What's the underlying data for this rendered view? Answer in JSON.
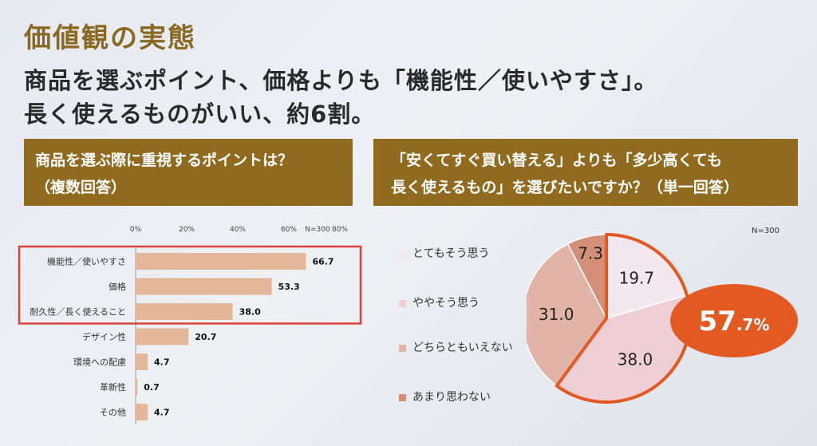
{
  "slide": {
    "title": "価値観の実態",
    "headline_line1": "商品を選ぶポイント、価格よりも「機能性／使いやすさ」。",
    "headline_line2": "長く使えるものがいい、約6割。"
  },
  "left_panel": {
    "banner_line1": "商品を選ぶ際に重視するポイントは？",
    "banner_line2": "（複数回答）"
  },
  "right_panel": {
    "banner_line1": "「安くてすぐ買い替える」よりも「多少高くても",
    "banner_line2": "長く使えるもの」を選びたいですか？（単一回答）",
    "n_label": "N=300"
  },
  "chart_data": [
    {
      "type": "bar",
      "orientation": "horizontal",
      "n_label": "N=300",
      "categories": [
        "機能性／使いやすさ",
        "価格",
        "耐久性／長く使えること",
        "デザイン性",
        "環境への配慮",
        "革新性",
        "その他"
      ],
      "values": [
        66.7,
        53.3,
        38.0,
        20.7,
        4.7,
        0.7,
        4.7
      ],
      "value_labels": [
        "66.7",
        "53.3",
        "38.0",
        "20.7",
        "4.7",
        "0.7",
        "4.7"
      ],
      "xlim": [
        0,
        80
      ],
      "ticks": [
        "0%",
        "20%",
        "40%",
        "60%",
        "80%"
      ],
      "tick_values": [
        0,
        20,
        40,
        60,
        80
      ],
      "highlight_top_n": 3,
      "bar_color": "#e2b79a",
      "highlight_color": "#d9453b"
    },
    {
      "type": "pie",
      "legend_position": "left",
      "categories": [
        "とてもそう思う",
        "ややそう思う",
        "どちらともいえない",
        "あまり思わない"
      ],
      "values": [
        19.7,
        38.0,
        31.0,
        7.3
      ],
      "value_labels": [
        "19.7",
        "38.0",
        "31.0",
        "7.3"
      ],
      "colors": [
        "#f4e8ee",
        "#eecfd6",
        "#e2b4a8",
        "#d48f78"
      ],
      "highlight": {
        "label_main": "57",
        "label_decimal": ".7%",
        "color": "#e25a22",
        "covers": [
          "とてもそう思う",
          "ややそう思う"
        ]
      }
    }
  ]
}
